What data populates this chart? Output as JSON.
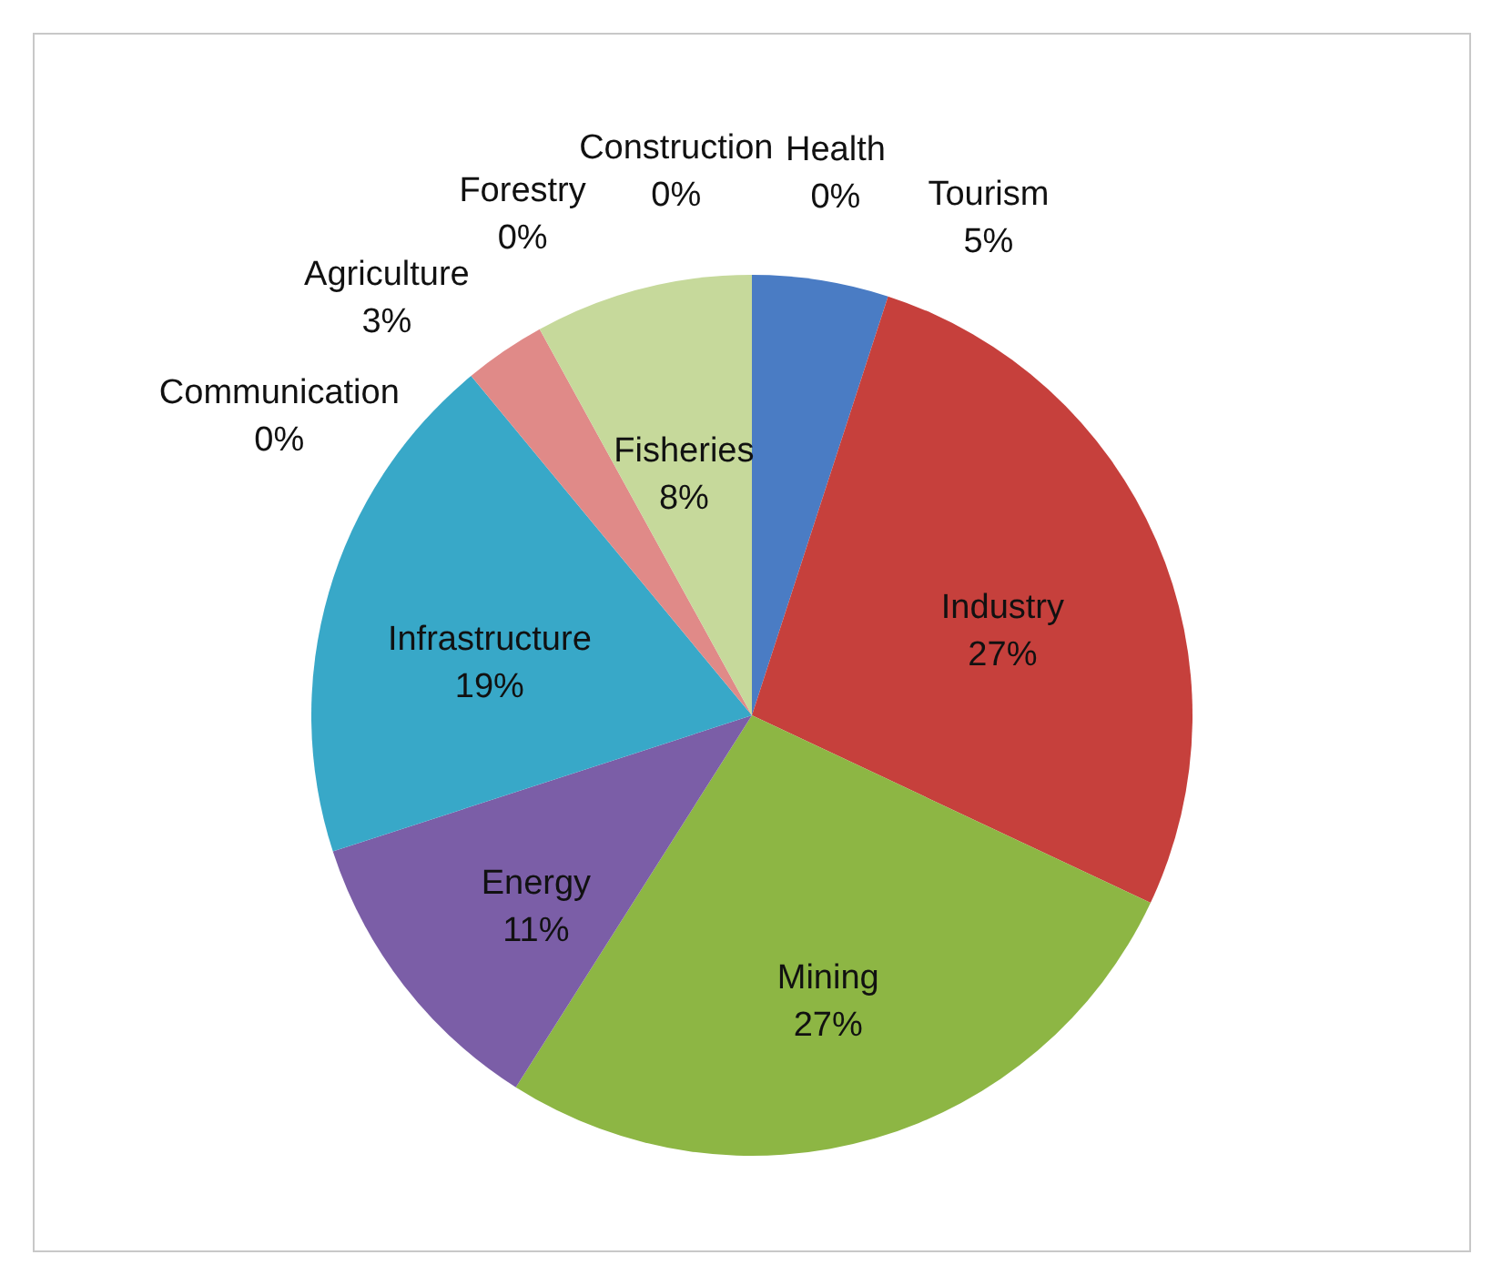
{
  "chart_data": {
    "type": "pie",
    "categories": [
      "Health",
      "Tourism",
      "Industry",
      "Mining",
      "Energy",
      "Infrastructure",
      "Communication",
      "Agriculture",
      "Forestry",
      "Fisheries",
      "Construction"
    ],
    "values": [
      0,
      5,
      27,
      27,
      11,
      19,
      0,
      3,
      0,
      8,
      0
    ],
    "value_labels": [
      "0%",
      "5%",
      "27%",
      "27%",
      "11%",
      "19%",
      "0%",
      "3%",
      "0%",
      "8%",
      "0%"
    ],
    "colors": [
      "#f79646",
      "#4a7cc4",
      "#c6403c",
      "#8db644",
      "#7b5ea7",
      "#38a8c8",
      "#2c4d75",
      "#e08a88",
      "#a5c8e0",
      "#c6d99b",
      "#f2c9a0"
    ],
    "legend": false
  }
}
